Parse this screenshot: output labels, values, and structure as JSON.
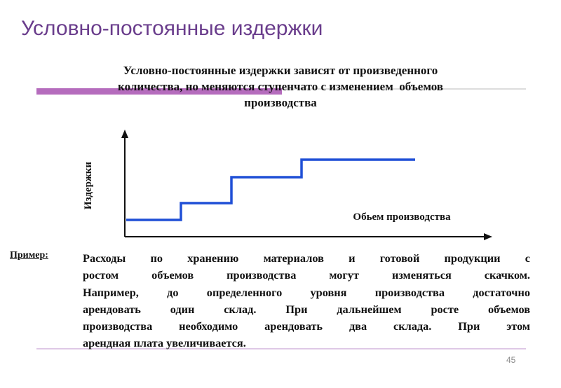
{
  "title": "Условно-постоянные издержки",
  "subtitle": {
    "lines": [
      "Условно-постоянные издержки зависят от произведенного",
      "количества, но меняются ступенчато с изменением  объемов",
      "производства"
    ]
  },
  "diagram": {
    "y_label": "Издержки",
    "x_label": "Обьем производства"
  },
  "example": {
    "label": "Пример:",
    "lines": [
      "Расходы по хранению материалов и готовой продукции с",
      "ростом объемов производства могут изменяться скачком.",
      "Например, до определенного уровня производства достаточно",
      "арендовать один склад. При дальнейшем росте объемов",
      "производства необходимо арендовать два склада. При этом",
      "арендная плата увеличивается."
    ]
  },
  "page_number": "45"
}
